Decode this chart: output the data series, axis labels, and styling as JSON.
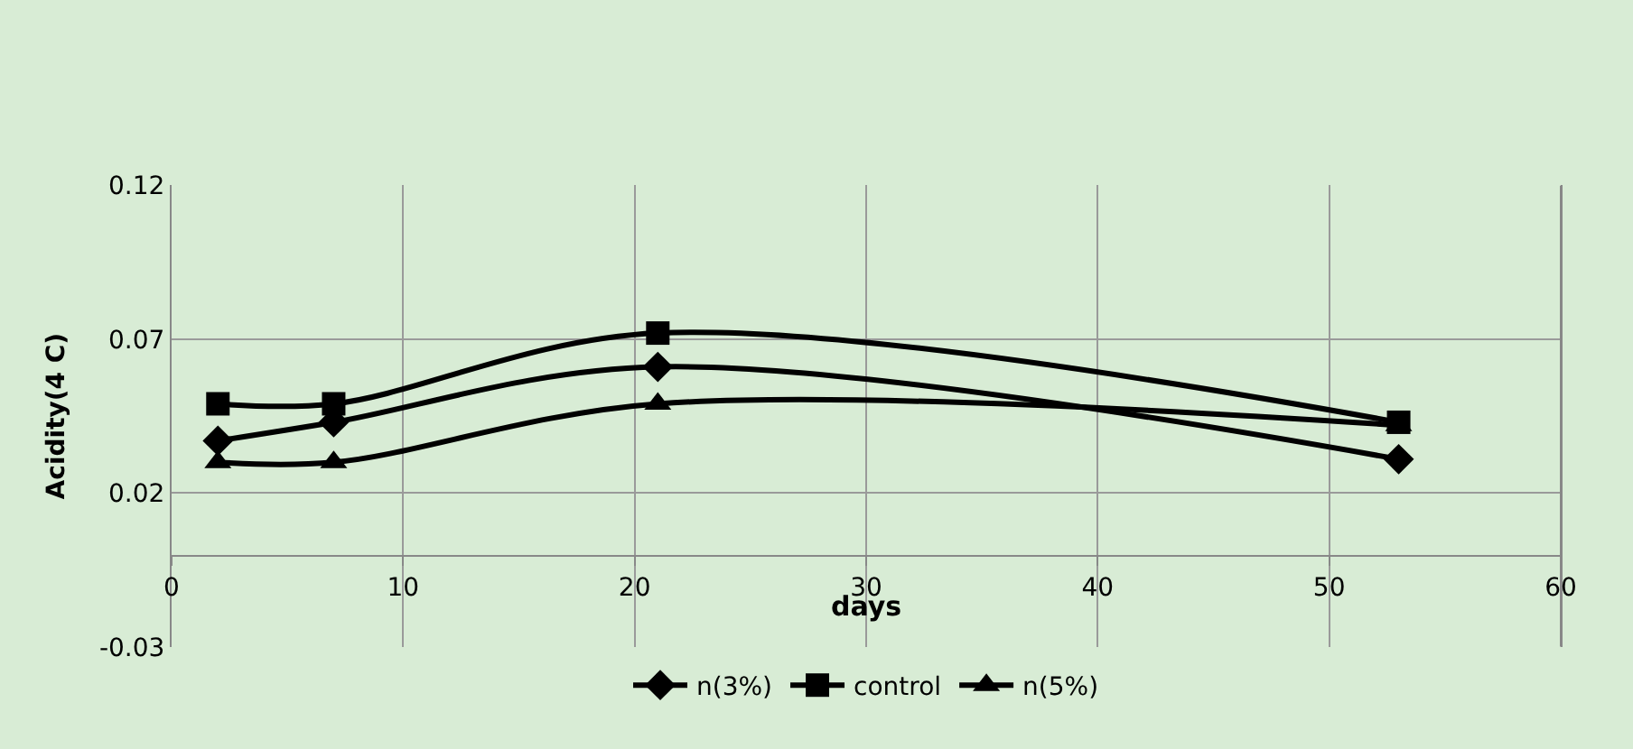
{
  "chart_data": {
    "type": "line",
    "xlabel": "days",
    "ylabel": "Acidity(4 C)",
    "x": [
      2,
      7,
      21,
      53
    ],
    "series": [
      {
        "name": "n(3%)",
        "color": "#000000",
        "marker": "diamond",
        "values": [
          0.037,
          0.043,
          0.061,
          0.031
        ]
      },
      {
        "name": "control",
        "color": "#000000",
        "marker": "square",
        "values": [
          0.049,
          0.049,
          0.072,
          0.043
        ]
      },
      {
        "name": "n(5%)",
        "color": "#000000",
        "marker": "triangle",
        "values": [
          0.03,
          0.03,
          0.049,
          0.042
        ]
      }
    ],
    "xlim": [
      0,
      60
    ],
    "xticks": [
      0,
      10,
      20,
      30,
      40,
      50,
      60
    ],
    "ylim": [
      -0.03,
      0.12
    ],
    "yticks": [
      -0.03,
      0.02,
      0.07,
      0.12
    ],
    "grid": true,
    "legend": "bottom",
    "line_style": "solid"
  }
}
